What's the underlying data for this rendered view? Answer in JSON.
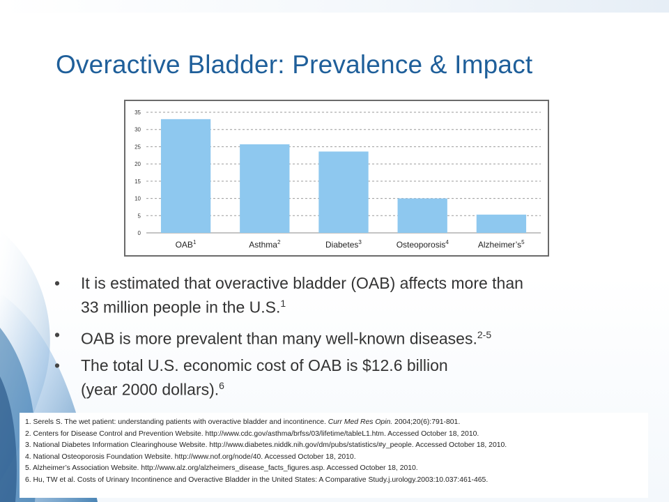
{
  "slide": {
    "title": "Overactive Bladder: Prevalence & Impact",
    "colors": {
      "title": "#1f5f9a",
      "bar": "#8ec8ef",
      "deco_blue": "#2b6fa8"
    }
  },
  "chart_data": {
    "type": "bar",
    "categories": [
      "OAB",
      "Asthma",
      "Diabetes",
      "Osteoporosis",
      "Alzheimer’s"
    ],
    "category_superscripts": [
      "1",
      "2",
      "3",
      "4",
      "5"
    ],
    "values": [
      33,
      25.7,
      23.6,
      10,
      5.3
    ],
    "ylim": [
      0,
      35
    ],
    "yticks": [
      0,
      5,
      10,
      15,
      20,
      25,
      30,
      35
    ],
    "grid": true,
    "grid_style": "dashed",
    "legend": "none",
    "bar_color": "#8ec8ef"
  },
  "bullets": [
    {
      "lines": [
        "It is estimated that overactive bladder (OAB) affects more than",
        "33 million people in the U.S."
      ],
      "sup": "1"
    },
    {
      "lines": [
        "OAB is more prevalent than many well-known diseases."
      ],
      "sup": "2-5"
    },
    {
      "lines": [
        "The total U.S. economic cost of OAB is $12.6 billion",
        "(year 2000 dollars)."
      ],
      "sup": "6"
    }
  ],
  "references": [
    {
      "pre": "1.  Serels S. The wet patient: understanding patients with overactive bladder and incontinence. ",
      "italic": "Curr Med Res Opin.",
      "post": " 2004;20(6):791-801."
    },
    {
      "pre": "2.  Centers for Disease Control and Prevention Website. http://www.cdc.gov/asthma/brfss/03/lifetime/tableL1.htm. Accessed October 18, 2010.",
      "italic": "",
      "post": ""
    },
    {
      "pre": "3.  National Diabetes Information Clearinghouse Website. http://www.diabetes.niddk.nih.gov/dm/pubs/statistics/#y_people. Accessed October 18, 2010.",
      "italic": "",
      "post": ""
    },
    {
      "pre": "4.  National Osteoporosis Foundation Website. http://www.nof.org/node/40. Accessed October 18, 2010.",
      "italic": "",
      "post": ""
    },
    {
      "pre": "5.  Alzheimer’s Association Website. http://www.alz.org/alzheimers_disease_facts_figures.asp. Accessed October 18, 2010.",
      "italic": "",
      "post": ""
    },
    {
      "pre": "6. Hu, TW et al. Costs of Urinary Incontinence and Overactive Bladder in the United States: A Comparative Study.j.urology.2003:10.037:461-465.",
      "italic": "",
      "post": ""
    }
  ]
}
